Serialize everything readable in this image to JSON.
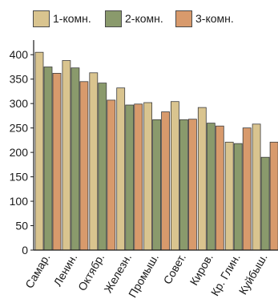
{
  "chart_data": {
    "type": "bar",
    "categories": [
      "Самар.",
      "Ленин.",
      "Октябр.",
      "Железн.",
      "Промыш.",
      "Совет.",
      "Киров.",
      "Кр. Глин.",
      "Куйбыш."
    ],
    "series": [
      {
        "name": "1-комн.",
        "color": "#d9c48f",
        "values": [
          405,
          388,
          363,
          332,
          302,
          304,
          292,
          221,
          258
        ]
      },
      {
        "name": "2-комн.",
        "color": "#8a9a6c",
        "values": [
          375,
          373,
          342,
          297,
          267,
          267,
          260,
          218,
          190
        ]
      },
      {
        "name": "3-комн.",
        "color": "#d89a6c",
        "values": [
          362,
          345,
          307,
          299,
          283,
          268,
          254,
          250,
          221
        ]
      }
    ],
    "yticks": [
      "0",
      "50",
      "100",
      "150",
      "200",
      "250",
      "300",
      "350",
      "400"
    ],
    "ylim": [
      0,
      425
    ],
    "title": "",
    "xlabel": "",
    "ylabel": "",
    "grid": false,
    "legend_position": "top"
  }
}
